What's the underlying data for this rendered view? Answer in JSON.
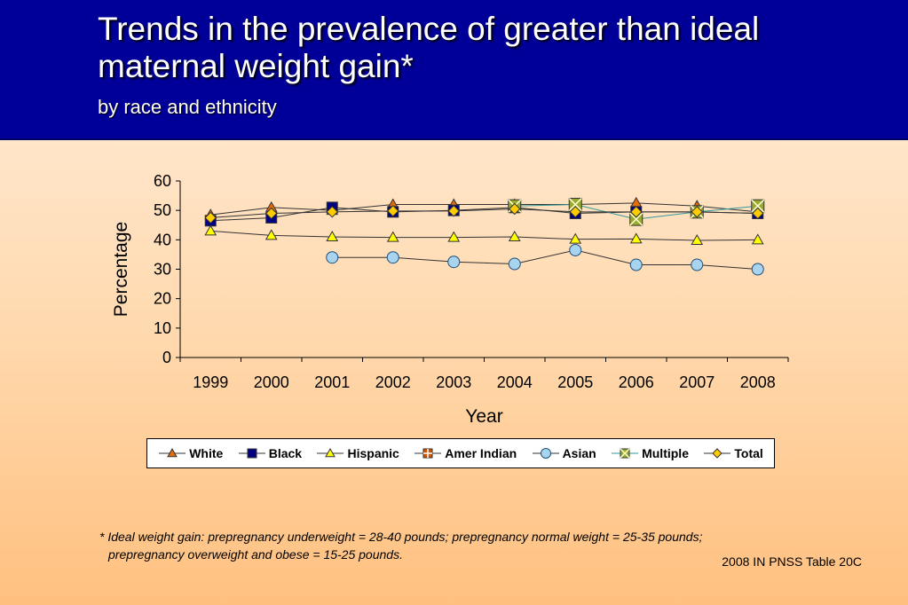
{
  "slide": {
    "title": "Trends in the prevalence of greater than ideal maternal weight gain*",
    "subtitle": "by race and ethnicity",
    "footnote_line1": "*  Ideal weight gain: prepregnancy underweight = 28-40 pounds; prepregnancy normal weight = 25-35 pounds;",
    "footnote_line2": "prepregnancy overweight and obese = 15-25 pounds.",
    "source": "2008 IN PNSS Table 20C"
  },
  "chart_data": {
    "type": "line",
    "xlabel": "Year",
    "ylabel": "Percentage",
    "ylim": [
      0,
      60
    ],
    "yticks": [
      0,
      10,
      20,
      30,
      40,
      50,
      60
    ],
    "categories": [
      "1999",
      "2000",
      "2001",
      "2002",
      "2003",
      "2004",
      "2005",
      "2006",
      "2007",
      "2008"
    ],
    "legend_position": "bottom",
    "grid": false,
    "series": [
      {
        "name": "White",
        "marker": "triangle",
        "color": "#e46c0a",
        "values": [
          48.5,
          51.0,
          50.0,
          52.0,
          52.0,
          52.0,
          52.0,
          52.5,
          51.5,
          49.5
        ]
      },
      {
        "name": "Black",
        "marker": "square",
        "color": "#000080",
        "values": [
          46.5,
          47.5,
          51.0,
          49.5,
          50.0,
          51.0,
          49.0,
          49.5,
          49.5,
          49.0
        ]
      },
      {
        "name": "Hispanic",
        "marker": "triangle",
        "color": "#ffff00",
        "values": [
          43.0,
          41.5,
          41.0,
          40.8,
          40.8,
          41.0,
          40.2,
          40.3,
          39.8,
          40.0
        ]
      },
      {
        "name": "Amer Indian",
        "marker": "plus-square",
        "color": "#cc5500",
        "values": [
          null,
          null,
          null,
          null,
          null,
          null,
          null,
          null,
          null,
          null
        ]
      },
      {
        "name": "Asian",
        "marker": "circle",
        "color": "#a8d4f0",
        "values": [
          null,
          null,
          34.0,
          34.0,
          32.5,
          31.8,
          36.5,
          31.5,
          31.5,
          30.0
        ]
      },
      {
        "name": "Multiple",
        "marker": "x-square",
        "color": "#99aa33",
        "values": [
          null,
          null,
          null,
          null,
          null,
          51.5,
          52.0,
          47.0,
          49.5,
          51.5
        ]
      },
      {
        "name": "Total",
        "marker": "diamond",
        "color": "#ffcc00",
        "values": [
          47.5,
          49.0,
          49.5,
          49.8,
          49.8,
          50.5,
          49.5,
          49.5,
          49.5,
          49.0
        ]
      }
    ]
  }
}
